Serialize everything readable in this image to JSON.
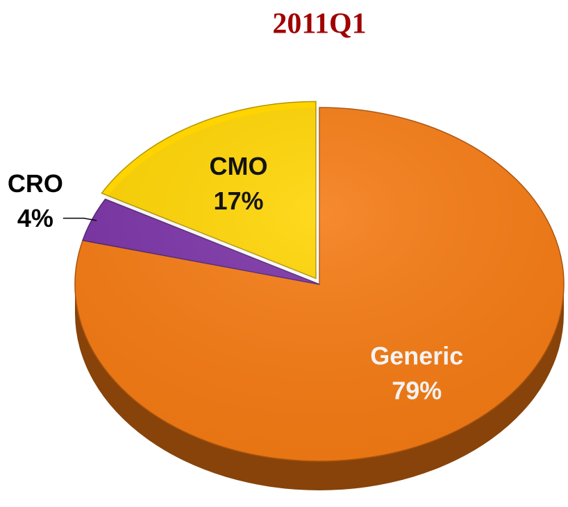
{
  "chart_data": {
    "type": "pie",
    "title": "2011Q1",
    "categories": [
      "Generic",
      "CRO",
      "CMO"
    ],
    "values": [
      79,
      4,
      17
    ],
    "value_labels": [
      "79%",
      "4%",
      "17%"
    ],
    "colors": [
      "#f57a12",
      "#7a32a6",
      "#ffd400"
    ]
  }
}
